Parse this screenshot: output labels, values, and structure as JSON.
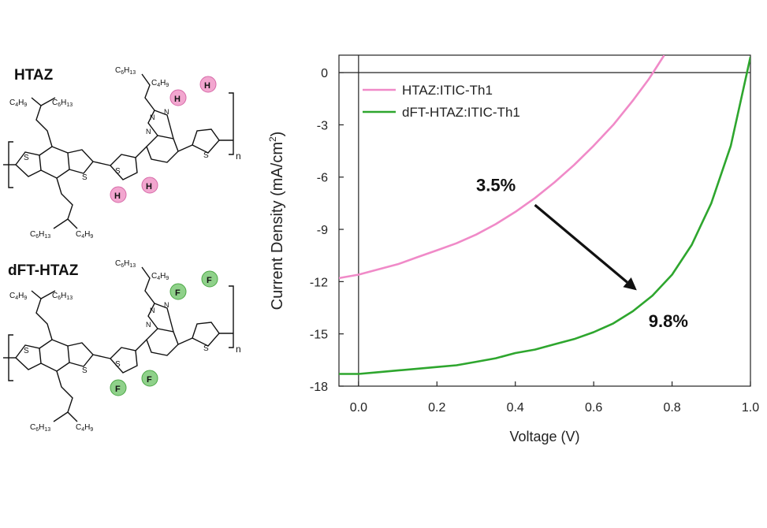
{
  "structures": {
    "top_label": "HTAZ",
    "bottom_label": "dFT-HTAZ",
    "top_subst_atom": "H",
    "bottom_subst_atom": "F",
    "ring_atom": "S",
    "subscript_n": "n",
    "chain_left": "C4H9",
    "chain_right": "C6H13",
    "chain_top": "C6H13",
    "chain_mid": "C4H9",
    "triazole_N": "N",
    "colors": {
      "H_circle": "#f2a6cf",
      "F_circle": "#8fd18a"
    }
  },
  "chart_data": {
    "type": "line",
    "xlabel": "Voltage (V)",
    "ylabel": "Current Density (mA/cm²)",
    "xlim": [
      -0.05,
      1.0
    ],
    "ylim": [
      -18,
      1
    ],
    "xticks": [
      0.0,
      0.2,
      0.4,
      0.6,
      0.8,
      1.0
    ],
    "xtick_labels": [
      "0.0",
      "0.2",
      "0.4",
      "0.6",
      "0.8",
      "1.0"
    ],
    "yticks": [
      0,
      -3,
      -6,
      -9,
      -12,
      -15,
      -18
    ],
    "ytick_labels": [
      "0",
      "-3",
      "-6",
      "-9",
      "-12",
      "-15",
      "-18"
    ],
    "legend_position": "top-left",
    "series": [
      {
        "name": "HTAZ:ITIC-Th1",
        "color": "#f08ac8",
        "x": [
          -0.05,
          0.0,
          0.05,
          0.1,
          0.15,
          0.2,
          0.25,
          0.3,
          0.35,
          0.4,
          0.45,
          0.5,
          0.55,
          0.6,
          0.65,
          0.7,
          0.74,
          0.76,
          0.78
        ],
        "y": [
          -11.8,
          -11.6,
          -11.3,
          -11.0,
          -10.6,
          -10.2,
          -9.8,
          -9.3,
          -8.7,
          -8.0,
          -7.2,
          -6.3,
          -5.3,
          -4.2,
          -3.0,
          -1.6,
          -0.4,
          0.3,
          1.0
        ]
      },
      {
        "name": "dFT-HTAZ:ITIC-Th1",
        "color": "#2ea62e",
        "x": [
          -0.05,
          0.0,
          0.05,
          0.1,
          0.15,
          0.2,
          0.25,
          0.3,
          0.35,
          0.4,
          0.45,
          0.5,
          0.55,
          0.6,
          0.65,
          0.7,
          0.75,
          0.8,
          0.85,
          0.9,
          0.95,
          1.0
        ],
        "y": [
          -17.3,
          -17.3,
          -17.2,
          -17.1,
          -17.0,
          -16.9,
          -16.8,
          -16.6,
          -16.4,
          -16.1,
          -15.9,
          -15.6,
          -15.3,
          -14.9,
          -14.4,
          -13.7,
          -12.8,
          -11.6,
          -9.9,
          -7.5,
          -4.2,
          0.9
        ]
      }
    ],
    "annotations": [
      {
        "text": "3.5%",
        "x": 0.3,
        "y": -6.8
      },
      {
        "text": "9.8%",
        "x": 0.74,
        "y": -14.6
      }
    ],
    "arrow": {
      "from": [
        0.45,
        -7.6
      ],
      "to": [
        0.71,
        -12.5
      ]
    }
  }
}
